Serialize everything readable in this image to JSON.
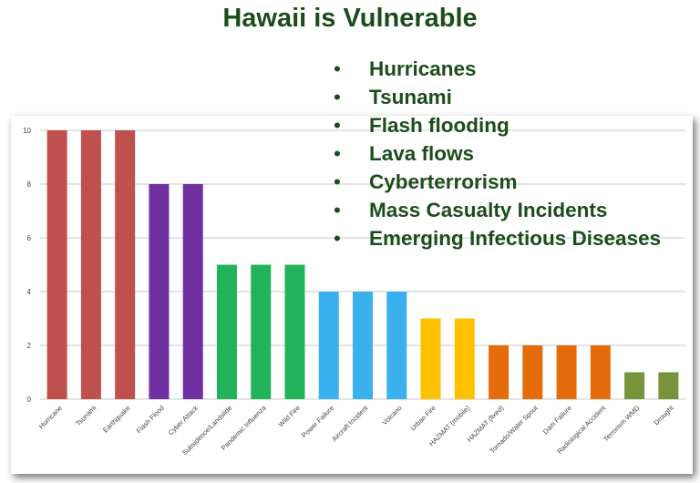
{
  "title": "Hawaii is Vulnerable",
  "bullets": [
    "Hurricanes",
    "Tsunami",
    "Flash flooding",
    "Lava flows",
    "Cyberterrorism",
    "Mass Casualty Incidents",
    "Emerging Infectious Diseases"
  ],
  "chart_data": {
    "type": "bar",
    "categories": [
      "Hurricane",
      "Tsunami",
      "Earthquake",
      "Flash Flood",
      "Cyber Attack",
      "Subsidence/Landslide",
      "Pandemic Influenza",
      "Wild Fire",
      "Power Failure",
      "Aircraft Incident",
      "Volcano",
      "Urban Fire",
      "HAZMAT (mobile)",
      "HAZMAT (fixed)",
      "Tornado/Water Spout",
      "Dam Failure",
      "Radiological Accident",
      "Terrorism WMD",
      "Drought"
    ],
    "values": [
      10,
      10,
      10,
      8,
      8,
      5,
      5,
      5,
      4,
      4,
      4,
      3,
      3,
      2,
      2,
      2,
      2,
      1,
      1
    ],
    "colors": [
      "#c0504d",
      "#c0504d",
      "#c0504d",
      "#7030a0",
      "#7030a0",
      "#22b35a",
      "#22b35a",
      "#22b35a",
      "#3bb0ee",
      "#3bb0ee",
      "#3bb0ee",
      "#ffc000",
      "#ffc000",
      "#e46c0a",
      "#e46c0a",
      "#e46c0a",
      "#e46c0a",
      "#77933c",
      "#77933c"
    ],
    "ylim": [
      0,
      10
    ],
    "yticks": [
      0,
      2,
      4,
      6,
      8,
      10
    ],
    "grid": true
  }
}
